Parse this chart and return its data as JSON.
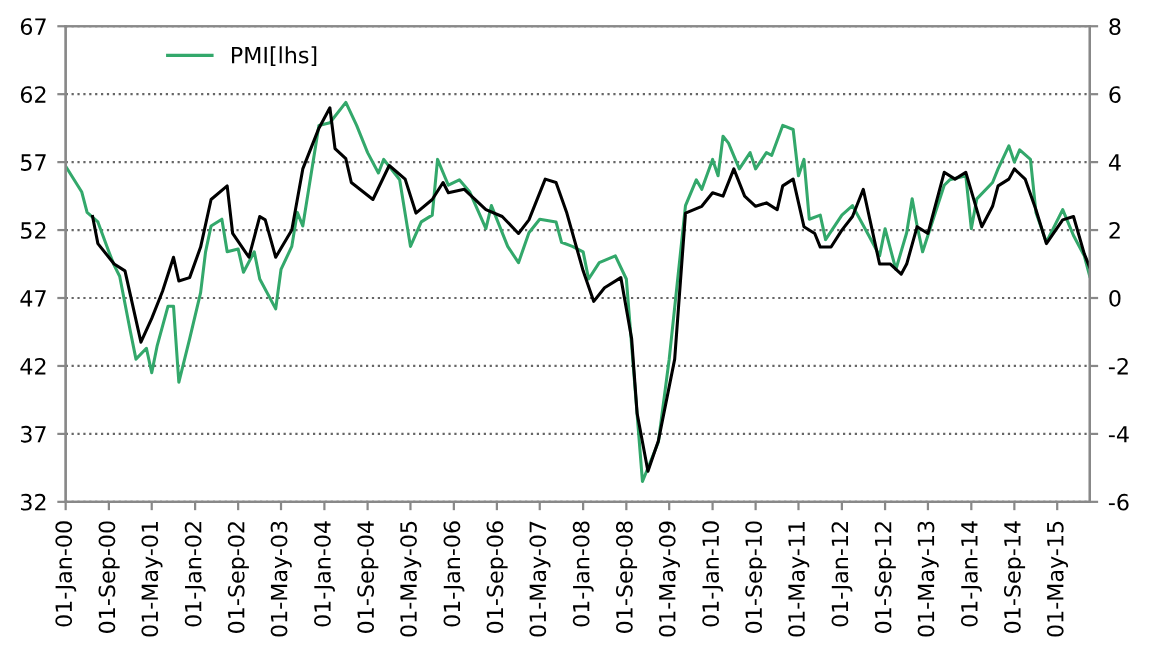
{
  "chart_data": {
    "type": "line",
    "xlim": [
      "2000-01-01",
      "2015-11-01"
    ],
    "xticks": [
      {
        "value": "2000-01-01",
        "label": "01-Jan-00"
      },
      {
        "value": "2000-09-01",
        "label": "01-Sep-00"
      },
      {
        "value": "2001-05-01",
        "label": "01-May-01"
      },
      {
        "value": "2002-01-01",
        "label": "01-Jan-02"
      },
      {
        "value": "2002-09-01",
        "label": "01-Sep-02"
      },
      {
        "value": "2003-05-01",
        "label": "01-May-03"
      },
      {
        "value": "2004-01-01",
        "label": "01-Jan-04"
      },
      {
        "value": "2004-09-01",
        "label": "01-Sep-04"
      },
      {
        "value": "2005-05-01",
        "label": "01-May-05"
      },
      {
        "value": "2006-01-01",
        "label": "01-Jan-06"
      },
      {
        "value": "2006-09-01",
        "label": "01-Sep-06"
      },
      {
        "value": "2007-05-01",
        "label": "01-May-07"
      },
      {
        "value": "2008-01-01",
        "label": "01-Jan-08"
      },
      {
        "value": "2008-09-01",
        "label": "01-Sep-08"
      },
      {
        "value": "2009-05-01",
        "label": "01-May-09"
      },
      {
        "value": "2010-01-01",
        "label": "01-Jan-10"
      },
      {
        "value": "2010-09-01",
        "label": "01-Sep-10"
      },
      {
        "value": "2011-05-01",
        "label": "01-May-11"
      },
      {
        "value": "2012-01-01",
        "label": "01-Jan-12"
      },
      {
        "value": "2012-09-01",
        "label": "01-Sep-12"
      },
      {
        "value": "2013-05-01",
        "label": "01-May-13"
      },
      {
        "value": "2014-01-01",
        "label": "01-Jan-14"
      },
      {
        "value": "2014-09-01",
        "label": "01-Sep-14"
      },
      {
        "value": "2015-05-01",
        "label": "01-May-15"
      }
    ],
    "ylim": [
      32,
      67
    ],
    "yticks": [
      32,
      37,
      42,
      47,
      52,
      57,
      62,
      67
    ],
    "y2lim": [
      -6,
      8
    ],
    "y2ticks": [
      -6,
      -4,
      -2,
      0,
      2,
      4,
      6,
      8
    ],
    "grid": "y",
    "legend": "top left",
    "marker": "none",
    "line_style": "solid",
    "series": [
      {
        "name": "PMI[lhs]",
        "color": "#33a86b",
        "x": [
          "2000-01",
          "2000-04",
          "2000-05",
          "2000-07",
          "2000-09",
          "2000-10",
          "2000-11",
          "2001-01",
          "2001-02",
          "2001-04",
          "2001-05",
          "2001-06",
          "2001-08",
          "2001-09",
          "2001-10",
          "2001-12",
          "2002-02",
          "2002-03",
          "2002-04",
          "2002-06",
          "2002-07",
          "2002-09",
          "2002-10",
          "2002-12",
          "2003-01",
          "2003-04",
          "2003-05",
          "2003-07",
          "2003-08",
          "2003-09",
          "2003-12",
          "2004-02",
          "2004-05",
          "2004-07",
          "2004-09",
          "2004-11",
          "2004-12",
          "2005-03",
          "2005-05",
          "2005-07",
          "2005-09",
          "2005-10",
          "2005-12",
          "2006-02",
          "2006-04",
          "2006-07",
          "2006-08",
          "2006-11",
          "2007-01",
          "2007-03",
          "2007-05",
          "2007-08",
          "2007-09",
          "2007-11",
          "2008-01",
          "2008-02",
          "2008-04",
          "2008-07",
          "2008-09",
          "2008-10",
          "2008-12",
          "2009-03",
          "2009-05",
          "2009-08",
          "2009-10",
          "2009-11",
          "2010-01",
          "2010-02",
          "2010-03",
          "2010-04",
          "2010-06",
          "2010-08",
          "2010-09",
          "2010-11",
          "2010-12",
          "2011-02",
          "2011-04",
          "2011-05",
          "2011-06",
          "2011-07",
          "2011-09",
          "2011-10",
          "2012-01",
          "2012-03",
          "2012-06",
          "2012-08",
          "2012-09",
          "2012-11",
          "2013-01",
          "2013-02",
          "2013-03",
          "2013-04",
          "2013-08",
          "2013-09",
          "2013-12",
          "2014-01",
          "2014-02",
          "2014-05",
          "2014-06",
          "2014-08",
          "2014-09",
          "2014-10",
          "2014-12",
          "2015-01",
          "2015-03",
          "2015-06",
          "2015-08",
          "2015-10",
          "2015-11"
        ],
        "values": [
          56.7,
          54.8,
          53.3,
          52.6,
          50.4,
          49.4,
          48.6,
          44.5,
          42.5,
          43.3,
          41.5,
          43.5,
          46.4,
          46.4,
          40.8,
          44,
          47.4,
          50.4,
          52.3,
          52.8,
          50.4,
          50.6,
          48.9,
          50.4,
          48.4,
          46.2,
          49.1,
          50.8,
          53.3,
          52.3,
          59.7,
          59.9,
          61.4,
          59.7,
          57.7,
          56.2,
          57.2,
          55.7,
          50.8,
          52.6,
          53.1,
          57.2,
          55.3,
          55.7,
          54.8,
          52.1,
          53.8,
          50.8,
          49.6,
          51.8,
          52.8,
          52.6,
          51.1,
          50.8,
          50.4,
          48.4,
          49.6,
          50.1,
          48.4,
          43.5,
          33.5,
          36.4,
          42.5,
          53.8,
          55.7,
          55.0,
          57.2,
          56.0,
          58.9,
          58.4,
          56.5,
          57.7,
          56.5,
          57.7,
          57.5,
          59.7,
          59.4,
          56.0,
          57.2,
          52.8,
          53.1,
          51.3,
          53.1,
          53.8,
          51.6,
          50.1,
          52.1,
          49.1,
          51.8,
          54.3,
          52.3,
          50.4,
          55.3,
          55.7,
          56.0,
          52.1,
          54.3,
          55.5,
          56.5,
          58.2,
          57.0,
          57.9,
          57.2,
          53.3,
          51.1,
          53.5,
          51.6,
          50.1,
          48.6
        ]
      },
      {
        "color": "#000000",
        "axis": "y2",
        "x": [
          "2000-06",
          "2000-07",
          "2000-10",
          "2000-12",
          "2001-03",
          "2001-05",
          "2001-07",
          "2001-09",
          "2001-10",
          "2001-12",
          "2002-02",
          "2002-04",
          "2002-07",
          "2002-08",
          "2002-11",
          "2003-01",
          "2003-02",
          "2003-04",
          "2003-07",
          "2003-09",
          "2003-12",
          "2004-02",
          "2004-03",
          "2004-05",
          "2004-06",
          "2004-10",
          "2005-01",
          "2005-04",
          "2005-06",
          "2005-09",
          "2005-11",
          "2005-12",
          "2006-03",
          "2006-07",
          "2006-10",
          "2007-01",
          "2007-03",
          "2007-06",
          "2007-08",
          "2007-10",
          "2008-01",
          "2008-03",
          "2008-05",
          "2008-08",
          "2008-10",
          "2008-11",
          "2009-01",
          "2009-03",
          "2009-06",
          "2009-08",
          "2009-11",
          "2010-01",
          "2010-03",
          "2010-05",
          "2010-07",
          "2010-09",
          "2010-11",
          "2011-01",
          "2011-02",
          "2011-04",
          "2011-06",
          "2011-08",
          "2011-09",
          "2011-11",
          "2012-01",
          "2012-03",
          "2012-05",
          "2012-08",
          "2012-10",
          "2012-12",
          "2013-01",
          "2013-03",
          "2013-05",
          "2013-08",
          "2013-10",
          "2013-12",
          "2014-03",
          "2014-05",
          "2014-06",
          "2014-08",
          "2014-09",
          "2014-11",
          "2015-01",
          "2015-03",
          "2015-06",
          "2015-08",
          "2015-10",
          "2015-11"
        ],
        "values": [
          2.4,
          1.6,
          1.0,
          0.8,
          -1.3,
          -0.6,
          0.2,
          1.2,
          0.5,
          0.6,
          1.5,
          2.9,
          3.3,
          1.9,
          1.2,
          2.4,
          2.3,
          1.2,
          2.0,
          3.8,
          5.0,
          5.6,
          4.4,
          4.1,
          3.4,
          2.9,
          3.9,
          3.5,
          2.5,
          2.9,
          3.4,
          3.1,
          3.2,
          2.6,
          2.4,
          1.9,
          2.3,
          3.5,
          3.4,
          2.5,
          0.8,
          -0.1,
          0.3,
          0.6,
          -1.2,
          -3.4,
          -5.1,
          -4.2,
          -1.8,
          2.5,
          2.7,
          3.1,
          3.0,
          3.8,
          3.0,
          2.7,
          2.8,
          2.6,
          3.3,
          3.5,
          2.1,
          1.9,
          1.5,
          1.5,
          2.0,
          2.4,
          3.2,
          1.0,
          1.0,
          0.7,
          1.0,
          2.1,
          1.9,
          3.7,
          3.5,
          3.7,
          2.1,
          2.7,
          3.3,
          3.5,
          3.8,
          3.5,
          2.6,
          1.6,
          2.3,
          2.4,
          1.3,
          0.9
        ]
      }
    ]
  }
}
